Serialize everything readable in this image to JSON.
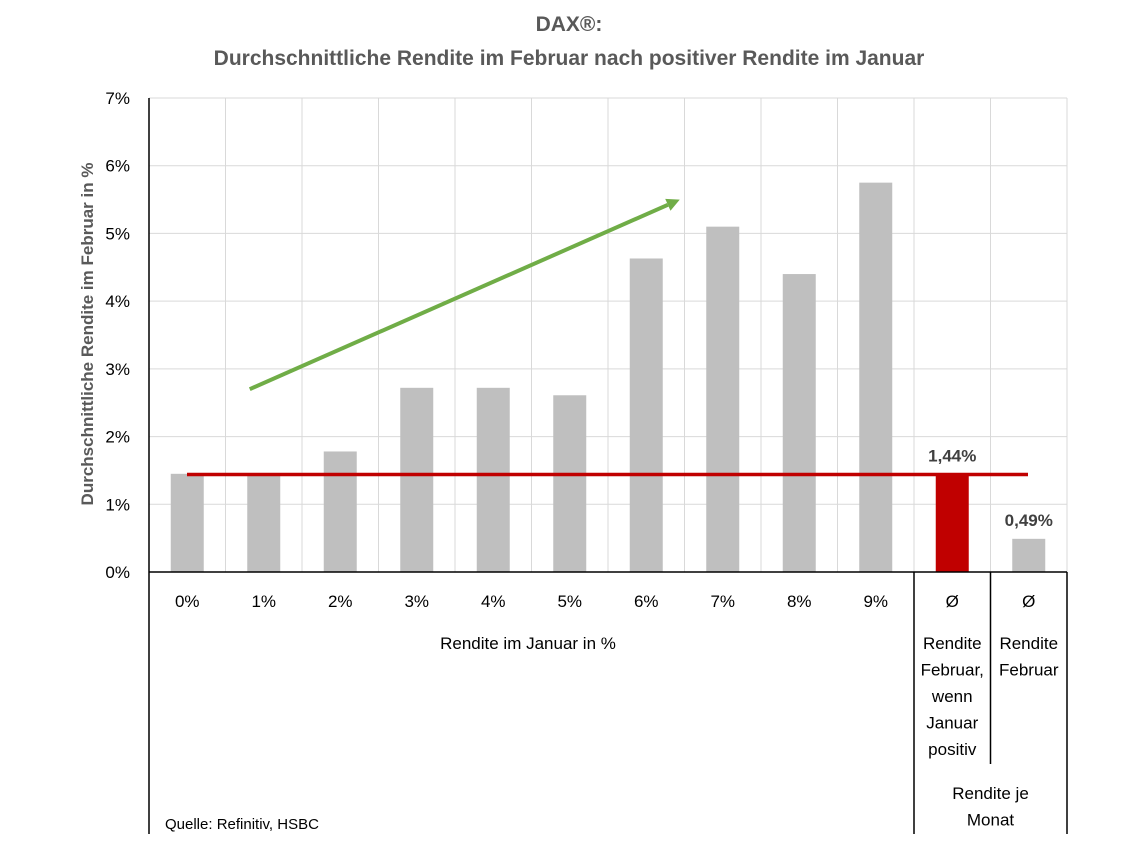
{
  "chart_data": {
    "type": "bar",
    "title": "DAX®:",
    "subtitle": "Durchschnittliche Rendite im Februar nach positiver Rendite im Januar",
    "ylabel": "Durchschnittliche Rendite im Februar in %",
    "xlabel": "Rendite im Januar in %",
    "ylim": [
      0,
      7
    ],
    "yticks": [
      "0%",
      "1%",
      "2%",
      "3%",
      "4%",
      "5%",
      "6%",
      "7%"
    ],
    "grid": true,
    "categories": [
      "0%",
      "1%",
      "2%",
      "3%",
      "4%",
      "5%",
      "6%",
      "7%",
      "8%",
      "9%"
    ],
    "values": [
      1.45,
      1.45,
      1.78,
      2.72,
      2.72,
      2.61,
      4.63,
      5.1,
      4.4,
      5.75
    ],
    "bar_color": "#bfbfbf",
    "averages": [
      {
        "symbol": "Ø",
        "label": "Rendite Februar, wenn Januar positiv",
        "label_lines": [
          "Rendite",
          "Februar,",
          "wenn",
          "Januar",
          "positiv"
        ],
        "value": 1.44,
        "value_label": "1,44%",
        "color": "#c00000"
      },
      {
        "symbol": "Ø",
        "label": "Rendite Februar",
        "label_lines": [
          "Rendite",
          "Februar"
        ],
        "value": 0.49,
        "value_label": "0,49%",
        "color": "#bfbfbf"
      }
    ],
    "group_label": "Rendite je Monat",
    "group_label_lines": [
      "Rendite je",
      "Monat"
    ],
    "reference_line": {
      "value": 1.44,
      "color": "#c00000"
    },
    "trend_arrow": {
      "color": "#70ad47",
      "from": {
        "x": "1%",
        "y": 2.7
      },
      "to": {
        "x": "7%",
        "y": 5.5
      }
    }
  },
  "source": "Quelle: Refinitiv, HSBC"
}
